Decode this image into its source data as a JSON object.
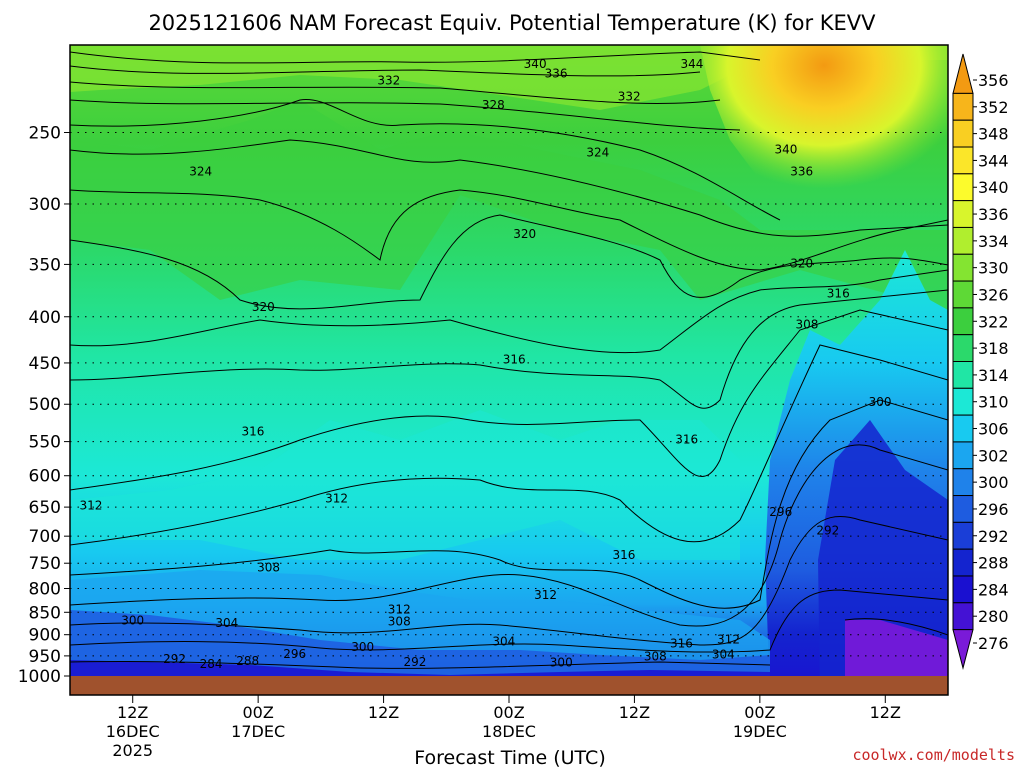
{
  "chart_data": {
    "type": "heatmap",
    "title": "2025121606 NAM Forecast Equiv. Potential Temperature (K) for KEVV",
    "xlabel": "Forecast Time (UTC)",
    "ylabel": "",
    "watermark": "coolwx.com/modelts",
    "y_scale": "log",
    "y_inverted": true,
    "y_range_hpa": [
      1000,
      200
    ],
    "y_ticks": [
      250,
      300,
      350,
      400,
      450,
      500,
      550,
      600,
      650,
      700,
      750,
      800,
      850,
      900,
      950,
      1000
    ],
    "x_range_hours": [
      0,
      84
    ],
    "x_ticks": [
      {
        "hour": 6,
        "label": "12Z",
        "date": "16DEC",
        "year": "2025"
      },
      {
        "hour": 18,
        "label": "00Z",
        "date": "17DEC",
        "year": ""
      },
      {
        "hour": 30,
        "label": "12Z",
        "date": "",
        "year": ""
      },
      {
        "hour": 42,
        "label": "00Z",
        "date": "18DEC",
        "year": ""
      },
      {
        "hour": 54,
        "label": "12Z",
        "date": "",
        "year": ""
      },
      {
        "hour": 66,
        "label": "00Z",
        "date": "19DEC",
        "year": ""
      },
      {
        "hour": 78,
        "label": "12Z",
        "date": "",
        "year": ""
      }
    ],
    "grid": "dotted horizontal at pressure ticks",
    "colorbar": {
      "position": "right",
      "levels": [
        {
          "value": "356",
          "color": "#f39a12"
        },
        {
          "value": "352",
          "color": "#f7b51b"
        },
        {
          "value": "348",
          "color": "#f9cf22"
        },
        {
          "value": "344",
          "color": "#fbe629"
        },
        {
          "value": "340",
          "color": "#fcfb2c"
        },
        {
          "value": "336",
          "color": "#d8f52c"
        },
        {
          "value": "334",
          "color": "#b0ee2e"
        },
        {
          "value": "330",
          "color": "#84e431"
        },
        {
          "value": "326",
          "color": "#5ed936"
        },
        {
          "value": "322",
          "color": "#3ccf3e"
        },
        {
          "value": "318",
          "color": "#2bd96b"
        },
        {
          "value": "314",
          "color": "#20e6a5"
        },
        {
          "value": "310",
          "color": "#1ce8d6"
        },
        {
          "value": "306",
          "color": "#18caf0"
        },
        {
          "value": "302",
          "color": "#1ba6f0"
        },
        {
          "value": "300",
          "color": "#1f82ea"
        },
        {
          "value": "296",
          "color": "#1e5ce0"
        },
        {
          "value": "292",
          "color": "#1a3ed7"
        },
        {
          "value": "288",
          "color": "#1424cf"
        },
        {
          "value": "284",
          "color": "#1a10d0"
        },
        {
          "value": "280",
          "color": "#4412d4"
        },
        {
          "value": "276",
          "color": "#7a1ad8"
        }
      ]
    },
    "contour_labels": [
      {
        "value": "340",
        "hour": 44.5,
        "hpa": 210
      },
      {
        "value": "344",
        "hour": 59.5,
        "hpa": 210
      },
      {
        "value": "336",
        "hour": 46.5,
        "hpa": 215
      },
      {
        "value": "332",
        "hour": 30.5,
        "hpa": 219
      },
      {
        "value": "332",
        "hour": 53.5,
        "hpa": 228
      },
      {
        "value": "328",
        "hour": 40.5,
        "hpa": 233
      },
      {
        "value": "340",
        "hour": 68.5,
        "hpa": 261
      },
      {
        "value": "336",
        "hour": 70,
        "hpa": 276
      },
      {
        "value": "324",
        "hour": 50.5,
        "hpa": 263
      },
      {
        "value": "324",
        "hour": 12.5,
        "hpa": 276
      },
      {
        "value": "320",
        "hour": 43.5,
        "hpa": 324
      },
      {
        "value": "320",
        "hour": 70,
        "hpa": 349
      },
      {
        "value": "316",
        "hour": 73.5,
        "hpa": 377
      },
      {
        "value": "320",
        "hour": 18.5,
        "hpa": 390
      },
      {
        "value": "308",
        "hour": 70.5,
        "hpa": 408
      },
      {
        "value": "316",
        "hour": 42.5,
        "hpa": 446
      },
      {
        "value": "300",
        "hour": 77.5,
        "hpa": 497
      },
      {
        "value": "316",
        "hour": 17.5,
        "hpa": 536
      },
      {
        "value": "316",
        "hour": 59,
        "hpa": 547
      },
      {
        "value": "312",
        "hour": 2,
        "hpa": 647
      },
      {
        "value": "312",
        "hour": 25.5,
        "hpa": 636
      },
      {
        "value": "296",
        "hour": 68,
        "hpa": 658
      },
      {
        "value": "292",
        "hour": 72.5,
        "hpa": 690
      },
      {
        "value": "316",
        "hour": 53,
        "hpa": 734
      },
      {
        "value": "308",
        "hour": 19,
        "hpa": 758
      },
      {
        "value": "312",
        "hour": 45.5,
        "hpa": 813
      },
      {
        "value": "312",
        "hour": 31.5,
        "hpa": 844
      },
      {
        "value": "300",
        "hour": 6,
        "hpa": 868
      },
      {
        "value": "308",
        "hour": 31.5,
        "hpa": 870
      },
      {
        "value": "304",
        "hour": 15,
        "hpa": 874
      },
      {
        "value": "304",
        "hour": 41.5,
        "hpa": 916
      },
      {
        "value": "316",
        "hour": 58.5,
        "hpa": 920
      },
      {
        "value": "312",
        "hour": 63,
        "hpa": 911
      },
      {
        "value": "300",
        "hour": 28,
        "hpa": 929
      },
      {
        "value": "296",
        "hour": 21.5,
        "hpa": 946
      },
      {
        "value": "308",
        "hour": 56,
        "hpa": 952
      },
      {
        "value": "304",
        "hour": 62.5,
        "hpa": 947
      },
      {
        "value": "292",
        "hour": 10,
        "hpa": 958
      },
      {
        "value": "288",
        "hour": 17,
        "hpa": 962
      },
      {
        "value": "292",
        "hour": 33,
        "hpa": 965
      },
      {
        "value": "284",
        "hour": 13.5,
        "hpa": 970
      },
      {
        "value": "300",
        "hour": 47,
        "hpa": 966
      }
    ]
  }
}
